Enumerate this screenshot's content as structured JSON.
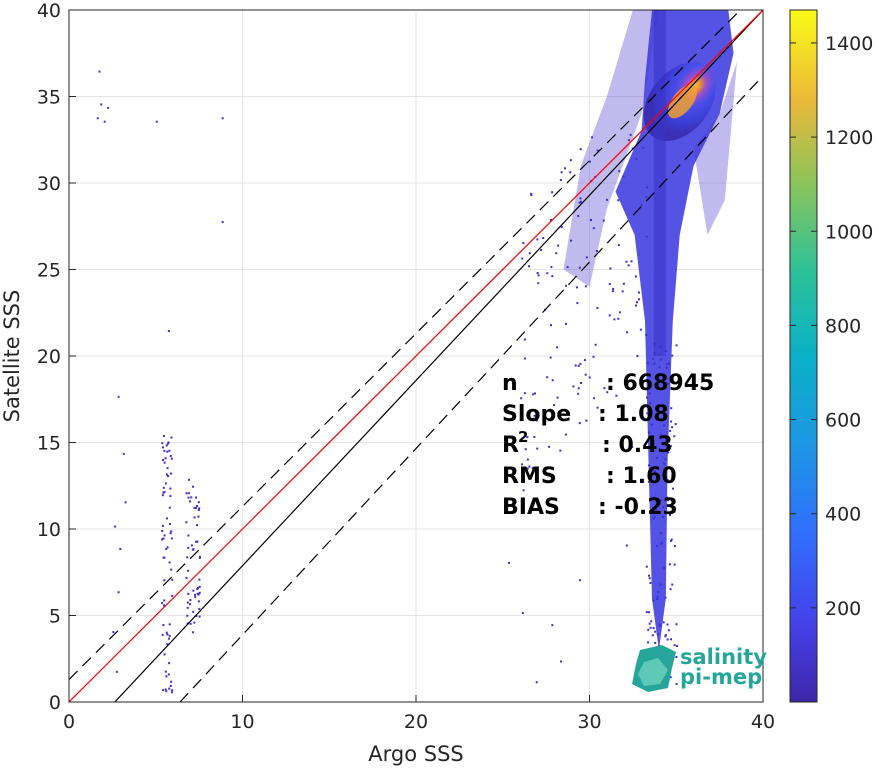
{
  "chart_data": {
    "type": "heatmap",
    "title": "",
    "xlabel": "Argo SSS",
    "ylabel": "Satellite SSS",
    "xlim": [
      0,
      40
    ],
    "ylim": [
      0,
      40
    ],
    "xticks": [
      "0",
      "10",
      "20",
      "30",
      "40"
    ],
    "yticks": [
      "0",
      "5",
      "10",
      "15",
      "20",
      "25",
      "30",
      "35",
      "40"
    ],
    "grid": true,
    "colormap": "parula",
    "colorbar": {
      "range": [
        0,
        1470
      ],
      "ticks": [
        "200",
        "400",
        "600",
        "800",
        "1000",
        "1200",
        "1400"
      ],
      "tick_values": [
        200,
        400,
        600,
        800,
        1000,
        1200,
        1400
      ]
    },
    "stats": {
      "rows": [
        {
          "label": "n",
          "value": ": 668945"
        },
        {
          "label": "Slope",
          "value": ": 1.08"
        },
        {
          "label": "R",
          "sup": "2",
          "value": ": 0.43"
        },
        {
          "label": "RMS",
          "value": ": 1.60"
        },
        {
          "label": "BIAS",
          "value": ": -0.23"
        }
      ]
    },
    "lines": {
      "identity": {
        "color": "#ff0000",
        "x": [
          0,
          40
        ],
        "y": [
          0,
          40
        ]
      },
      "regression": {
        "color": "#000000",
        "x": [
          2.64,
          40
        ],
        "y": [
          0,
          40
        ]
      },
      "upper_bound": {
        "color": "#000000",
        "style": "dashed",
        "x": [
          0,
          40
        ],
        "y": [
          1.3,
          41.3
        ]
      },
      "lower_bound": {
        "color": "#000000",
        "style": "dashed",
        "x": [
          6.4,
          40
        ],
        "y": [
          0,
          36.2
        ]
      }
    },
    "density_core": {
      "x": [
        33,
        38
      ],
      "y": [
        29,
        40
      ],
      "peak": [
        35.2,
        34.7
      ],
      "peak_count": 1470
    },
    "sparse_points": [
      {
        "x": 1.6,
        "y": 33.8
      },
      {
        "x": 1.8,
        "y": 34.6
      },
      {
        "x": 2.0,
        "y": 33.6
      },
      {
        "x": 2.2,
        "y": 34.4
      },
      {
        "x": 1.7,
        "y": 36.5
      },
      {
        "x": 5.0,
        "y": 33.6
      },
      {
        "x": 8.8,
        "y": 33.8
      },
      {
        "x": 8.8,
        "y": 27.8
      },
      {
        "x": 5.7,
        "y": 21.5
      },
      {
        "x": 2.8,
        "y": 17.7
      },
      {
        "x": 3.1,
        "y": 14.4
      },
      {
        "x": 3.2,
        "y": 11.6
      },
      {
        "x": 2.6,
        "y": 10.2
      },
      {
        "x": 2.9,
        "y": 8.9
      },
      {
        "x": 2.8,
        "y": 6.4
      },
      {
        "x": 2.5,
        "y": 4.1
      },
      {
        "x": 2.7,
        "y": 1.8
      },
      {
        "x": 26.5,
        "y": 26.0
      },
      {
        "x": 25.3,
        "y": 8.1
      },
      {
        "x": 26.1,
        "y": 5.2
      },
      {
        "x": 27.8,
        "y": 4.5
      },
      {
        "x": 26.9,
        "y": 1.2
      },
      {
        "x": 28.3,
        "y": 2.4
      },
      {
        "x": 32.1,
        "y": 9.1
      },
      {
        "x": 32.4,
        "y": 14.8
      },
      {
        "x": 30.8,
        "y": 18.2
      },
      {
        "x": 29.4,
        "y": 7.1
      }
    ]
  },
  "logo": {
    "line1": "salinity",
    "line2": "pi-mep",
    "color": "#26a69a"
  }
}
